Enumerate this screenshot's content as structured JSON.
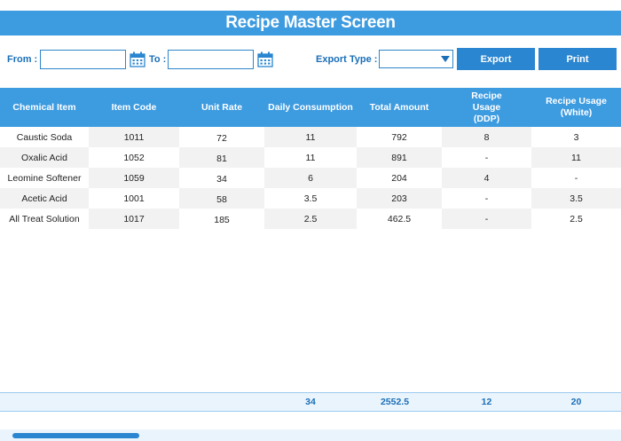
{
  "title": "Recipe Master Screen",
  "filters": {
    "from_label": "From :",
    "from_value": "",
    "to_label": "To :",
    "to_value": "",
    "export_type_label": "Export Type :",
    "export_type_value": ""
  },
  "buttons": {
    "export": "Export",
    "print": "Print"
  },
  "colors": {
    "accent": "#3d9be0",
    "button": "#2a86d0",
    "label": "#1a6fb8",
    "row_alt": "#f2f2f2"
  },
  "icons": {
    "calendar": "calendar-icon",
    "dropdown": "chevron-down-icon"
  },
  "table": {
    "columns": [
      {
        "label": "Chemical Item"
      },
      {
        "label": "Item Code"
      },
      {
        "label": "Unit Rate"
      },
      {
        "label": "Daily Consumption"
      },
      {
        "label": "Total Amount"
      },
      {
        "label": "Recipe Usage (DDP)"
      },
      {
        "label": "Recipe Usage (White)"
      }
    ],
    "rows": [
      {
        "cells": [
          "Caustic Soda",
          "1011",
          "72",
          "11",
          "792",
          "8",
          "3"
        ]
      },
      {
        "cells": [
          "Oxalic Acid",
          "1052",
          "81",
          "11",
          "891",
          "-",
          "11"
        ]
      },
      {
        "cells": [
          "Leomine Softener",
          "1059",
          "34",
          "6",
          "204",
          "4",
          "-"
        ]
      },
      {
        "cells": [
          "Acetic Acid",
          "1001",
          "58",
          "3.5",
          "203",
          "-",
          "3.5"
        ]
      },
      {
        "cells": [
          "All Treat Solution",
          "1017",
          "185",
          "2.5",
          "462.5",
          "-",
          "2.5"
        ]
      }
    ],
    "totals": [
      "",
      "",
      "",
      "34",
      "2552.5",
      "12",
      "20"
    ]
  }
}
